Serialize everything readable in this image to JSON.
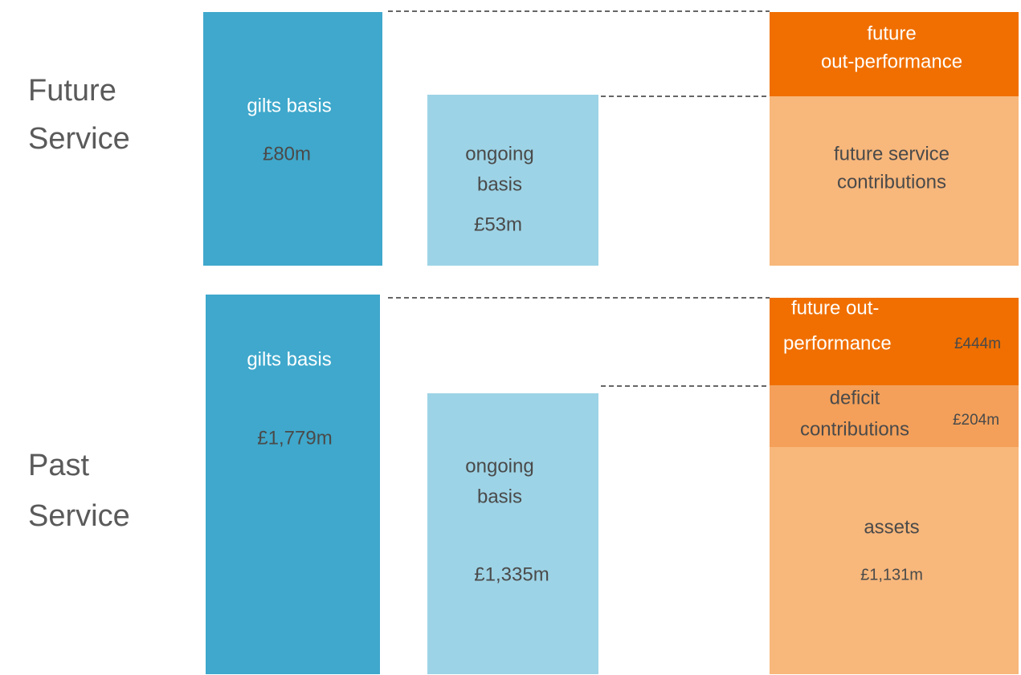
{
  "sections": [
    {
      "label": [
        "Future",
        "Service"
      ],
      "gilts": {
        "label": [
          "gilts basis"
        ],
        "value": "£80m"
      },
      "ongoing": {
        "label": [
          "ongoing",
          "basis"
        ],
        "value": "£53m"
      },
      "stack": [
        {
          "label": [
            "future",
            "out-performance"
          ]
        },
        {
          "label": [
            "future service",
            "contributions"
          ]
        }
      ]
    },
    {
      "label": [
        "Past",
        "Service"
      ],
      "gilts": {
        "label": [
          "gilts basis"
        ],
        "value": "£1,779m"
      },
      "ongoing": {
        "label": [
          "ongoing",
          "basis"
        ],
        "value": "£1,335m"
      },
      "stack": [
        {
          "label": [
            "future out-",
            "performance"
          ],
          "value": "£444m"
        },
        {
          "label": [
            "deficit",
            "contributions"
          ],
          "value": "£204m"
        },
        {
          "label": [
            "assets"
          ],
          "value": "£1,131m"
        }
      ]
    }
  ]
}
